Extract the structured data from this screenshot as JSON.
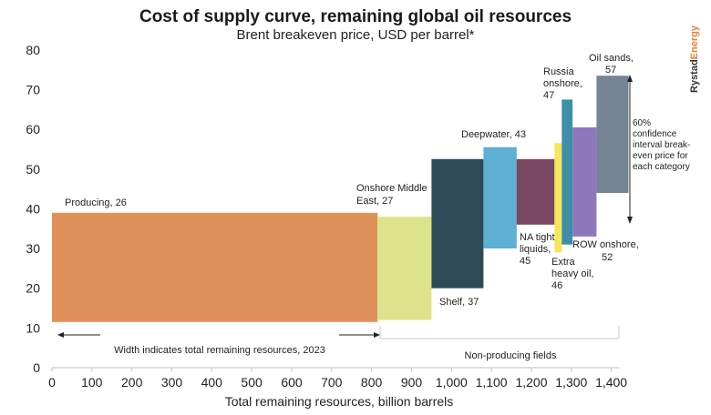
{
  "chart_data": {
    "type": "bar",
    "subtype": "variable-width-supply-curve",
    "title": "Cost of supply curve, remaining global oil resources",
    "subtitle": "Brent breakeven price, USD per barrel*",
    "xlabel": "Total remaining resources, billion barrels",
    "ylabel": "",
    "xlim": [
      0,
      1420
    ],
    "ylim": [
      0,
      80
    ],
    "x_ticks": [
      0,
      100,
      200,
      300,
      400,
      500,
      600,
      700,
      800,
      900,
      1000,
      1100,
      1200,
      1300,
      1400
    ],
    "x_tick_labels": [
      "0",
      "100",
      "200",
      "300",
      "400",
      "500",
      "600",
      "700",
      "800",
      "900",
      "1,000",
      "1,100",
      "1,200",
      "1,300",
      "1,400"
    ],
    "y_ticks": [
      0,
      10,
      20,
      30,
      40,
      50,
      60,
      70,
      80
    ],
    "grid": false,
    "segments": [
      {
        "name": "Producing",
        "label": "Producing, 26",
        "x_start": 0,
        "x_end": 815,
        "low": 11.5,
        "high": 39,
        "price": 26,
        "color": "#e0915a"
      },
      {
        "name": "Onshore Middle East",
        "label": "Onshore Middle East, 27",
        "x_start": 815,
        "x_end": 950,
        "low": 12,
        "high": 38,
        "price": 27,
        "color": "#dde38a"
      },
      {
        "name": "Shelf",
        "label": "Shelf, 37",
        "x_start": 950,
        "x_end": 1080,
        "low": 20,
        "high": 52.5,
        "price": 37,
        "color": "#2e4a58"
      },
      {
        "name": "Deepwater",
        "label": "Deepwater, 43",
        "x_start": 1080,
        "x_end": 1163,
        "low": 30,
        "high": 55.5,
        "price": 43,
        "color": "#5dafd3"
      },
      {
        "name": "NA tight liquids",
        "label": "NA tight liquids, 45",
        "x_start": 1163,
        "x_end": 1258,
        "low": 36,
        "high": 52.5,
        "price": 45,
        "color": "#7a4760"
      },
      {
        "name": "Extra heavy oil",
        "label": "Extra heavy oil, 46",
        "x_start": 1258,
        "x_end": 1276,
        "low": 29,
        "high": 56.5,
        "price": 46,
        "color": "#f7e55a"
      },
      {
        "name": "Russia onshore",
        "label": "Russia onshore, 47",
        "x_start": 1276,
        "x_end": 1303,
        "low": 31,
        "high": 67.5,
        "price": 47,
        "color": "#3e8fa6"
      },
      {
        "name": "ROW onshore",
        "label": "ROW onshore, 52",
        "x_start": 1303,
        "x_end": 1363,
        "low": 33,
        "high": 60.5,
        "price": 52,
        "color": "#8e78bc"
      },
      {
        "name": "Oil sands",
        "label": "Oil sands, 57",
        "x_start": 1363,
        "x_end": 1443,
        "low": 44,
        "high": 73.5,
        "price": 57,
        "color": "#758594"
      }
    ],
    "annotations": [
      {
        "text": "Width indicates total remaining resources, 2023",
        "x_from": 0,
        "x_to": 815
      },
      {
        "text": "Non-producing fields",
        "x_from": 815,
        "x_to": 1443
      },
      {
        "text": "60% confidence interval break-even price for each category",
        "y_from": 37,
        "y_to": 73.5
      }
    ]
  },
  "labels": {
    "producing": "Producing, 26",
    "onshore_me_line1": "Onshore Middle",
    "onshore_me_line2": "East, 27",
    "shelf": "Shelf, 37",
    "deepwater": "Deepwater, 43",
    "na_tight_line1": "NA tight",
    "na_tight_line2": "liquids,",
    "na_tight_line3": "45",
    "extra_heavy_line1": "Extra",
    "extra_heavy_line2": "heavy oil,",
    "extra_heavy_line3": "46",
    "russia_line1": "Russia",
    "russia_line2": "onshore,",
    "russia_line3": "47",
    "row_line1": "ROW onshore,",
    "row_line2": "52",
    "oil_sands_line1": "Oil sands,",
    "oil_sands_line2": "57",
    "ci_line1": "60%",
    "ci_line2": "confidence",
    "ci_line3": "interval break-",
    "ci_line4": "even price for",
    "ci_line5": "each category",
    "width_note": "Width indicates total remaining resources, 2023",
    "non_producing": "Non-producing fields"
  },
  "brand": {
    "name_part1": "Rystad",
    "name_part2": "Energy",
    "color_part1": "#333333",
    "color_part2": "#e8803a"
  }
}
